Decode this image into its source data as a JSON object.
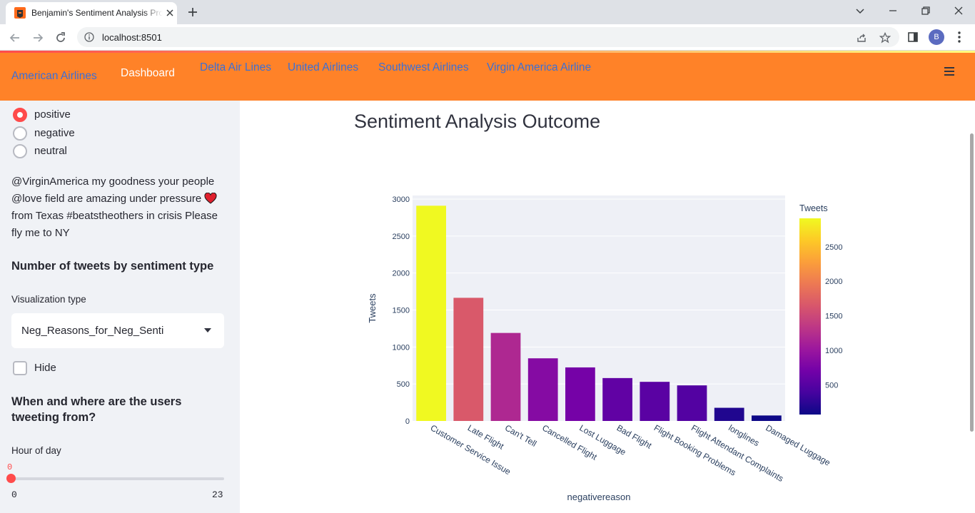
{
  "browser": {
    "tab_title": "Benjamin's Sentiment Analysis Project",
    "url": "localhost:8501",
    "profile_initial": "B"
  },
  "header": {
    "links": [
      {
        "label": "American Airlines",
        "active": false
      },
      {
        "label": "Dashboard",
        "active": true
      },
      {
        "label": "Delta Air Lines",
        "active": false
      },
      {
        "label": "United Airlines",
        "active": false
      },
      {
        "label": "Southwest Airlines",
        "active": false
      },
      {
        "label": "Virgin America Airline",
        "active": false
      }
    ],
    "colors": {
      "background": "#ff8228",
      "link": "#3b6fd6",
      "active_link": "#ffffff"
    }
  },
  "sidebar": {
    "sentiment_options": [
      {
        "label": "positive",
        "selected": true
      },
      {
        "label": "negative",
        "selected": false
      },
      {
        "label": "neutral",
        "selected": false
      }
    ],
    "tweet_text": "@VirginAmerica my goodness your people @love field are amazing under pressure",
    "tweet_text_after": " from Texas #beatstheothers in crisis Please fly me to NY",
    "tweet_emoji": "heart-icon",
    "count_heading": "Number of tweets by sentiment type",
    "viz_label": "Visualization type",
    "viz_value": "Neg_Reasons_for_Neg_Senti",
    "hide_label": "Hide",
    "hide_checked": false,
    "where_heading": "When and where are the users tweeting from?",
    "hour_label": "Hour of day",
    "hour_value": "0",
    "hour_min": "0",
    "hour_max": "23",
    "accent_color": "#ff4b4b"
  },
  "main": {
    "title": "Sentiment Analysis Outcome"
  },
  "chart_data": {
    "type": "bar",
    "categories": [
      "Customer Service Issue",
      "Late Flight",
      "Can't Tell",
      "Cancelled Flight",
      "Lost Luggage",
      "Bad Flight",
      "Flight Booking Problems",
      "Flight Attendant Complaints",
      "longlines",
      "Damaged Luggage"
    ],
    "values": [
      2910,
      1665,
      1190,
      847,
      724,
      580,
      529,
      481,
      178,
      74
    ],
    "xlabel": "negativereason",
    "ylabel": "Tweets",
    "ylim": [
      0,
      3000
    ],
    "yticks": [
      0,
      500,
      1000,
      1500,
      2000,
      2500,
      3000
    ],
    "colorbar": {
      "title": "Tweets",
      "ticks": [
        500,
        1000,
        1500,
        2000,
        2500
      ],
      "range": [
        74,
        2910
      ],
      "colorscale": "plasma"
    },
    "grid": true,
    "legend": "colorbar right"
  }
}
